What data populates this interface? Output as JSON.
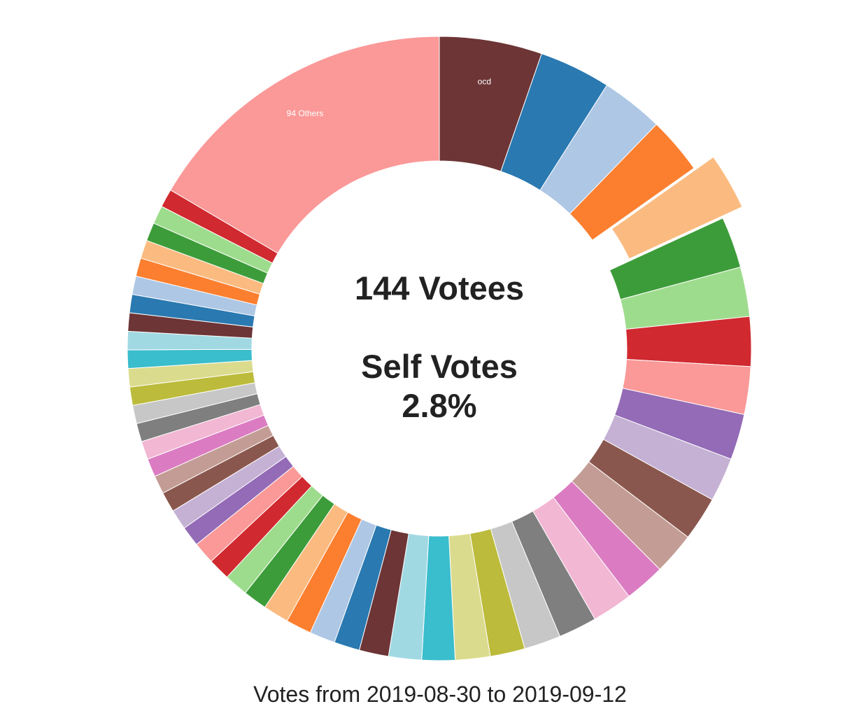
{
  "chart_data": {
    "type": "pie",
    "donut": true,
    "center_text": {
      "line1": "144 Votees",
      "line2": "Self Votes",
      "line3": "2.8%"
    },
    "caption": "Votes from 2019-08-30 to 2019-09-12",
    "slices": [
      {
        "label": "ocd",
        "value": 56,
        "color": "#6d3536"
      },
      {
        "label": "",
        "value": 39,
        "color": "#2a79b1"
      },
      {
        "label": "",
        "value": 34,
        "color": "#aec7e5"
      },
      {
        "label": "",
        "value": 31,
        "color": "#fb7f2f"
      },
      {
        "label": "",
        "value": 31,
        "color": "#fbbb80",
        "exploded": true
      },
      {
        "label": "",
        "value": 28,
        "color": "#3d9c3a"
      },
      {
        "label": "",
        "value": 27,
        "color": "#9edc8d"
      },
      {
        "label": "",
        "value": 27,
        "color": "#d0292f"
      },
      {
        "label": "",
        "value": 26,
        "color": "#fa9998"
      },
      {
        "label": "",
        "value": 25,
        "color": "#946bb6"
      },
      {
        "label": "",
        "value": 24,
        "color": "#c5b1d4"
      },
      {
        "label": "",
        "value": 24,
        "color": "#8a574e"
      },
      {
        "label": "",
        "value": 23,
        "color": "#c39d95"
      },
      {
        "label": "",
        "value": 22,
        "color": "#db7cc2"
      },
      {
        "label": "",
        "value": 22,
        "color": "#f2b7d3"
      },
      {
        "label": "",
        "value": 21,
        "color": "#7f7f7f"
      },
      {
        "label": "",
        "value": 20,
        "color": "#c7c7c7"
      },
      {
        "label": "",
        "value": 19,
        "color": "#bcbb3b"
      },
      {
        "label": "",
        "value": 19,
        "color": "#dbdb8e"
      },
      {
        "label": "",
        "value": 18,
        "color": "#3abdcc"
      },
      {
        "label": "",
        "value": 18,
        "color": "#a1d9e3"
      },
      {
        "label": "",
        "value": 16,
        "color": "#6d3536"
      },
      {
        "label": "",
        "value": 14,
        "color": "#2a79b1"
      },
      {
        "label": "",
        "value": 14,
        "color": "#aec7e5"
      },
      {
        "label": "",
        "value": 14,
        "color": "#fb7f2f"
      },
      {
        "label": "",
        "value": 14,
        "color": "#fbbb80"
      },
      {
        "label": "",
        "value": 13,
        "color": "#3d9c3a"
      },
      {
        "label": "",
        "value": 13,
        "color": "#9edc8d"
      },
      {
        "label": "",
        "value": 12,
        "color": "#d0292f"
      },
      {
        "label": "",
        "value": 12,
        "color": "#fa9998"
      },
      {
        "label": "",
        "value": 11,
        "color": "#946bb6"
      },
      {
        "label": "",
        "value": 11,
        "color": "#c5b1d4"
      },
      {
        "label": "",
        "value": 11,
        "color": "#8a574e"
      },
      {
        "label": "",
        "value": 10,
        "color": "#c39d95"
      },
      {
        "label": "",
        "value": 10,
        "color": "#db7cc2"
      },
      {
        "label": "",
        "value": 10,
        "color": "#f2b7d3"
      },
      {
        "label": "",
        "value": 10,
        "color": "#7f7f7f"
      },
      {
        "label": "",
        "value": 10,
        "color": "#c7c7c7"
      },
      {
        "label": "",
        "value": 10,
        "color": "#bcbb3b"
      },
      {
        "label": "",
        "value": 10,
        "color": "#dbdb8e"
      },
      {
        "label": "",
        "value": 10,
        "color": "#3abdcc"
      },
      {
        "label": "",
        "value": 10,
        "color": "#a1d9e3"
      },
      {
        "label": "",
        "value": 10,
        "color": "#6d3536"
      },
      {
        "label": "",
        "value": 10,
        "color": "#2a79b1"
      },
      {
        "label": "",
        "value": 10,
        "color": "#aec7e5"
      },
      {
        "label": "",
        "value": 10,
        "color": "#fb7f2f"
      },
      {
        "label": "",
        "value": 10,
        "color": "#fbbb80"
      },
      {
        "label": "",
        "value": 10,
        "color": "#3d9c3a"
      },
      {
        "label": "",
        "value": 10,
        "color": "#9edc8d"
      },
      {
        "label": "",
        "value": 10,
        "color": "#d0292f"
      },
      {
        "label": "94 Others",
        "value": 174,
        "color": "#fa9998"
      }
    ]
  }
}
